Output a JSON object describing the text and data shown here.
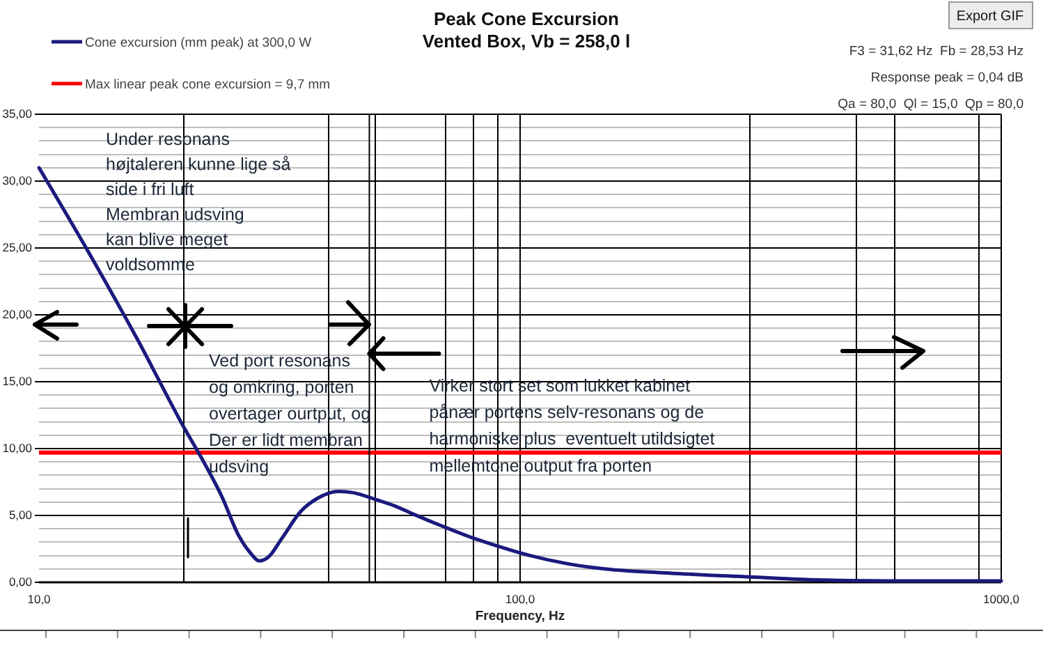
{
  "chart_data": {
    "type": "line",
    "title": "Peak Cone Excursion",
    "subtitle": "Vented Box, Vb = 258,0 l",
    "xlabel": "Frequency, Hz",
    "x": [
      10,
      13,
      16,
      20,
      22,
      24,
      26,
      27.5,
      28.7,
      30,
      32,
      35,
      38,
      42,
      45,
      50,
      55,
      60,
      70,
      80,
      90,
      100,
      125,
      150,
      200,
      300,
      400,
      600,
      1000
    ],
    "series": [
      {
        "name": "Cone excursion (mm peak) at 300,0 W",
        "color": "#1a1a7e",
        "values": [
          31.0,
          24.0,
          18.2,
          11.6,
          9.0,
          6.4,
          3.5,
          2.2,
          1.6,
          1.9,
          3.3,
          5.3,
          6.3,
          6.8,
          6.7,
          6.2,
          5.7,
          5.1,
          4.1,
          3.3,
          2.7,
          2.2,
          1.4,
          1.0,
          0.7,
          0.4,
          0.2,
          0.1,
          0.1
        ]
      }
    ],
    "xlim": [
      10,
      1000
    ],
    "ylim": [
      0,
      35
    ],
    "xticks": [
      {
        "value": 10,
        "label": "10,0"
      },
      {
        "value": 20,
        "label": null
      },
      {
        "value": 40,
        "label": null
      },
      {
        "value": 50,
        "label": null
      },
      {
        "value": 70,
        "label": null
      },
      {
        "value": 80,
        "label": null
      },
      {
        "value": 90,
        "label": null
      },
      {
        "value": 100,
        "label": "100,0"
      },
      {
        "value": 300,
        "label": null
      },
      {
        "value": 500,
        "label": null
      },
      {
        "value": 600,
        "label": null
      },
      {
        "value": 900,
        "label": null
      },
      {
        "value": 1000,
        "label": "1000,0"
      }
    ],
    "yticks": [
      {
        "value": 0,
        "label": "0,00"
      },
      {
        "value": 1,
        "label": null
      },
      {
        "value": 2,
        "label": null
      },
      {
        "value": 3,
        "label": null
      },
      {
        "value": 4,
        "label": null
      },
      {
        "value": 5,
        "label": "5,00"
      },
      {
        "value": 6,
        "label": null
      },
      {
        "value": 7,
        "label": null
      },
      {
        "value": 8,
        "label": null
      },
      {
        "value": 9,
        "label": null
      },
      {
        "value": 10,
        "label": "10,00"
      },
      {
        "value": 11,
        "label": null
      },
      {
        "value": 12,
        "label": null
      },
      {
        "value": 13,
        "label": null
      },
      {
        "value": 14,
        "label": null
      },
      {
        "value": 15,
        "label": "15,00"
      },
      {
        "value": 16,
        "label": null
      },
      {
        "value": 17,
        "label": null
      },
      {
        "value": 18,
        "label": null
      },
      {
        "value": 19,
        "label": null
      },
      {
        "value": 20,
        "label": "20,00"
      },
      {
        "value": 21,
        "label": null
      },
      {
        "value": 22,
        "label": null
      },
      {
        "value": 23,
        "label": null
      },
      {
        "value": 24,
        "label": null
      },
      {
        "value": 25,
        "label": "25,00"
      },
      {
        "value": 26,
        "label": null
      },
      {
        "value": 27,
        "label": null
      },
      {
        "value": 28,
        "label": null
      },
      {
        "value": 29,
        "label": null
      },
      {
        "value": 30,
        "label": "30,00"
      },
      {
        "value": 31,
        "label": null
      },
      {
        "value": 32,
        "label": null
      },
      {
        "value": 33,
        "label": null
      },
      {
        "value": 34,
        "label": null
      },
      {
        "value": 35,
        "label": "35,00"
      }
    ],
    "log": "x",
    "grid": true,
    "legend": "top left",
    "line_style": "solid",
    "ref_lines": [
      {
        "axis": "y",
        "value": 9.7,
        "label": "Max linear peak cone excursion = 9,7 mm",
        "color": "#ff0000"
      },
      {
        "axis": "x",
        "value": 48.6,
        "color": "#000000"
      }
    ],
    "annotations": [
      "Under resonans\nhøjtaleren kunne lige så\nside i fri luft\nMembran udsving\nkan blive meget\nvoldsomme",
      "Ved port resonans\nog omkring, porten\novertager ourtput, og\nDer er lidt membran\nudsving",
      {
        "text": "Virker stort set som lukket kabinet\npånær portens selv-resonans og de\nharmoniske plus  eventuelt utildsigtet\nmellemtone output fra porten",
        "x": 48.6,
        "y": 17.1
      },
      "F3 = 31,62 Hz  Fb = 28,53 Hz",
      "Response peak = 0,04 dB",
      "Qa = 80,0  Ql = 15,0  Qp = 80,0",
      "Export GIF"
    ]
  }
}
